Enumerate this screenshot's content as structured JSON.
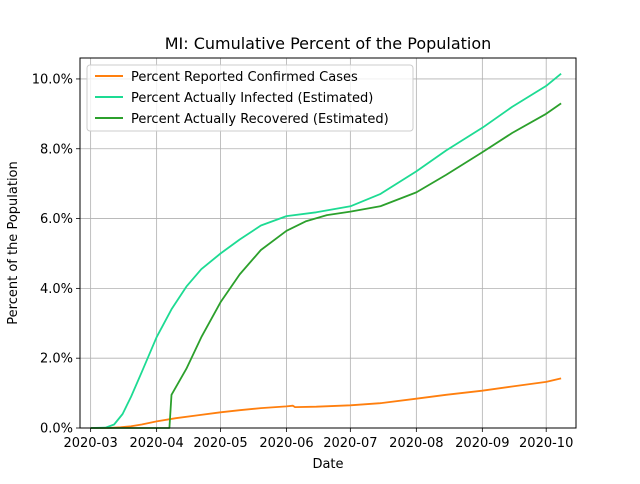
{
  "chart_data": {
    "type": "line",
    "title": "MI: Cumulative Percent of the Population",
    "xlabel": "Date",
    "ylabel": "Percent of the Population",
    "x_axis_kind": "date",
    "xlim": [
      "2020-02-25",
      "2020-10-15"
    ],
    "ylim": [
      0,
      10.6
    ],
    "x_ticks": [
      "2020-03-01",
      "2020-04-01",
      "2020-05-01",
      "2020-06-01",
      "2020-07-01",
      "2020-08-01",
      "2020-09-01",
      "2020-10-01"
    ],
    "x_tick_labels": [
      "2020-03",
      "2020-04",
      "2020-05",
      "2020-06",
      "2020-07",
      "2020-08",
      "2020-09",
      "2020-10"
    ],
    "y_ticks": [
      0,
      2,
      4,
      6,
      8,
      10
    ],
    "y_tick_labels": [
      "0.0%",
      "2.0%",
      "4.0%",
      "6.0%",
      "8.0%",
      "10.0%"
    ],
    "grid": true,
    "legend_position": "top-left",
    "series": [
      {
        "name": "Percent Reported Confirmed Cases",
        "color": "#ff7f0e",
        "points": [
          [
            "2020-03-01",
            0
          ],
          [
            "2020-03-10",
            0.003
          ],
          [
            "2020-03-15",
            0.02
          ],
          [
            "2020-03-20",
            0.05
          ],
          [
            "2020-03-25",
            0.1
          ],
          [
            "2020-04-01",
            0.19
          ],
          [
            "2020-04-10",
            0.28
          ],
          [
            "2020-04-20",
            0.36
          ],
          [
            "2020-05-01",
            0.45
          ],
          [
            "2020-05-10",
            0.51
          ],
          [
            "2020-05-20",
            0.57
          ],
          [
            "2020-06-01",
            0.62
          ],
          [
            "2020-06-04",
            0.64
          ],
          [
            "2020-06-05",
            0.6
          ],
          [
            "2020-06-15",
            0.61
          ],
          [
            "2020-07-01",
            0.65
          ],
          [
            "2020-07-15",
            0.71
          ],
          [
            "2020-08-01",
            0.84
          ],
          [
            "2020-08-15",
            0.95
          ],
          [
            "2020-09-01",
            1.07
          ],
          [
            "2020-09-15",
            1.19
          ],
          [
            "2020-10-01",
            1.32
          ],
          [
            "2020-10-08",
            1.42
          ]
        ]
      },
      {
        "name": "Percent Actually Infected (Estimated)",
        "color": "#1ddb93",
        "points": [
          [
            "2020-03-01",
            0
          ],
          [
            "2020-03-08",
            0.01
          ],
          [
            "2020-03-12",
            0.1
          ],
          [
            "2020-03-16",
            0.4
          ],
          [
            "2020-03-20",
            0.9
          ],
          [
            "2020-03-25",
            1.6
          ],
          [
            "2020-04-01",
            2.6
          ],
          [
            "2020-04-08",
            3.4
          ],
          [
            "2020-04-15",
            4.05
          ],
          [
            "2020-04-22",
            4.55
          ],
          [
            "2020-05-01",
            5.0
          ],
          [
            "2020-05-10",
            5.4
          ],
          [
            "2020-05-20",
            5.8
          ],
          [
            "2020-06-01",
            6.07
          ],
          [
            "2020-06-15",
            6.18
          ],
          [
            "2020-07-01",
            6.35
          ],
          [
            "2020-07-15",
            6.7
          ],
          [
            "2020-08-01",
            7.35
          ],
          [
            "2020-08-15",
            7.95
          ],
          [
            "2020-09-01",
            8.6
          ],
          [
            "2020-09-15",
            9.2
          ],
          [
            "2020-10-01",
            9.8
          ],
          [
            "2020-10-08",
            10.15
          ]
        ]
      },
      {
        "name": "Percent Actually Recovered (Estimated)",
        "color": "#2ca02c",
        "points": [
          [
            "2020-03-01",
            0
          ],
          [
            "2020-04-07",
            0
          ],
          [
            "2020-04-08",
            0.95
          ],
          [
            "2020-04-15",
            1.7
          ],
          [
            "2020-04-22",
            2.6
          ],
          [
            "2020-05-01",
            3.6
          ],
          [
            "2020-05-10",
            4.4
          ],
          [
            "2020-05-20",
            5.1
          ],
          [
            "2020-06-01",
            5.65
          ],
          [
            "2020-06-10",
            5.92
          ],
          [
            "2020-06-20",
            6.1
          ],
          [
            "2020-07-01",
            6.2
          ],
          [
            "2020-07-15",
            6.35
          ],
          [
            "2020-08-01",
            6.75
          ],
          [
            "2020-08-15",
            7.25
          ],
          [
            "2020-09-01",
            7.9
          ],
          [
            "2020-09-15",
            8.45
          ],
          [
            "2020-10-01",
            9.0
          ],
          [
            "2020-10-08",
            9.3
          ]
        ]
      }
    ]
  }
}
